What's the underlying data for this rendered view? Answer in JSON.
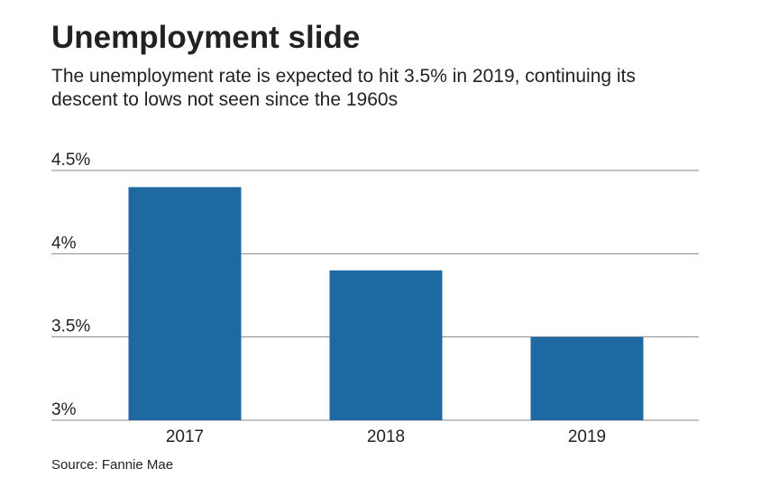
{
  "chart_data": {
    "type": "bar",
    "title": "Unemployment slide",
    "subtitle": "The unemployment rate is expected to hit 3.5% in 2019, continuing its descent to lows not seen since the 1960s",
    "source": "Source: Fannie Mae",
    "categories": [
      "2017",
      "2018",
      "2019"
    ],
    "values": [
      4.4,
      3.9,
      3.5
    ],
    "color": "#1f69a3",
    "ylim": [
      3,
      4.5
    ],
    "yticks": [
      {
        "value": 3,
        "label": "3%"
      },
      {
        "value": 3.5,
        "label": "3.5%"
      },
      {
        "value": 4,
        "label": "4%"
      },
      {
        "value": 4.5,
        "label": "4.5%"
      }
    ],
    "grid": true
  }
}
